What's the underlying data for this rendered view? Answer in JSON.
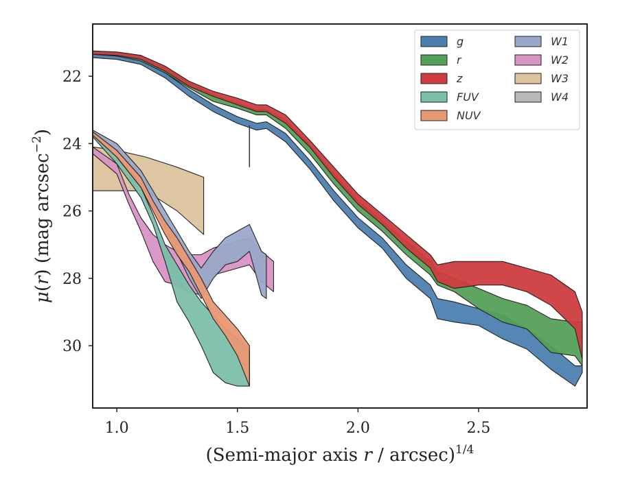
{
  "chart_data": {
    "type": "area",
    "xlabel": "(Semi-major axis r / arcsec)^{1/4}",
    "ylabel": "μ(r) (mag arcsec^{−2})",
    "xlim": [
      0.9,
      2.95
    ],
    "ylim": [
      31.85,
      20.45
    ],
    "y_inverted": true,
    "xticks": [
      1.0,
      1.5,
      2.0,
      2.5
    ],
    "xtick_labels": [
      "1.0",
      "1.5",
      "2.0",
      "2.5"
    ],
    "yticks": [
      22,
      24,
      26,
      28,
      30
    ],
    "ytick_labels": [
      "22",
      "24",
      "26",
      "28",
      "30"
    ],
    "legend": {
      "position": "top-right",
      "columns": 2
    },
    "annotation": {
      "type": "vertical-line",
      "x": 1.55,
      "y_range": [
        23.45,
        24.7
      ]
    },
    "series": [
      {
        "name": "g",
        "color": "#4c7fb0",
        "x": [
          0.9,
          1.0,
          1.1,
          1.2,
          1.3,
          1.4,
          1.5,
          1.58,
          1.62,
          1.7,
          1.8,
          1.9,
          2.0,
          2.1,
          2.2,
          2.3,
          2.33,
          2.4,
          2.5,
          2.6,
          2.7,
          2.8,
          2.9,
          2.93
        ],
        "y1": [
          21.35,
          21.4,
          21.5,
          21.9,
          22.4,
          22.85,
          23.2,
          23.4,
          23.35,
          23.7,
          24.5,
          25.4,
          26.2,
          26.8,
          27.6,
          28.2,
          28.6,
          28.7,
          28.9,
          29.1,
          29.5,
          30.0,
          30.6,
          30.6
        ],
        "y2": [
          21.45,
          21.5,
          21.65,
          22.05,
          22.6,
          23.05,
          23.4,
          23.6,
          23.55,
          23.95,
          24.75,
          25.7,
          26.5,
          27.1,
          28.0,
          28.6,
          29.2,
          29.3,
          29.4,
          29.8,
          30.1,
          30.7,
          31.2,
          30.8
        ]
      },
      {
        "name": "r",
        "color": "#55a05a",
        "x": [
          0.9,
          1.0,
          1.1,
          1.2,
          1.3,
          1.4,
          1.5,
          1.58,
          1.62,
          1.7,
          1.8,
          1.9,
          2.0,
          2.1,
          2.2,
          2.3,
          2.33,
          2.4,
          2.5,
          2.6,
          2.7,
          2.8,
          2.9,
          2.93
        ],
        "y1": [
          21.25,
          21.3,
          21.4,
          21.75,
          22.2,
          22.55,
          22.8,
          23.0,
          23.0,
          23.3,
          24.05,
          24.9,
          25.7,
          26.3,
          26.9,
          27.5,
          27.8,
          28.0,
          28.3,
          28.6,
          28.8,
          29.2,
          29.3,
          29.3
        ],
        "y2": [
          21.35,
          21.4,
          21.55,
          21.9,
          22.35,
          22.75,
          22.95,
          23.15,
          23.15,
          23.55,
          24.3,
          25.2,
          26.0,
          26.6,
          27.3,
          27.9,
          28.2,
          28.4,
          28.9,
          29.3,
          29.5,
          30.2,
          30.3,
          30.6
        ]
      },
      {
        "name": "z",
        "color": "#cf3c3f",
        "x": [
          0.9,
          1.0,
          1.1,
          1.2,
          1.3,
          1.4,
          1.5,
          1.58,
          1.62,
          1.7,
          1.8,
          1.9,
          2.0,
          2.1,
          2.2,
          2.3,
          2.33,
          2.4,
          2.5,
          2.6,
          2.7,
          2.8,
          2.9,
          2.93
        ],
        "y1": [
          21.25,
          21.28,
          21.38,
          21.7,
          22.15,
          22.45,
          22.65,
          22.85,
          22.85,
          23.15,
          23.9,
          24.7,
          25.5,
          26.1,
          26.7,
          27.3,
          27.6,
          27.5,
          27.5,
          27.5,
          27.7,
          27.9,
          28.4,
          29.0
        ],
        "y2": [
          21.35,
          21.38,
          21.5,
          21.85,
          22.3,
          22.6,
          22.85,
          23.05,
          23.05,
          23.4,
          24.1,
          25.0,
          25.8,
          26.4,
          27.1,
          27.7,
          28.1,
          28.3,
          28.2,
          28.2,
          28.4,
          28.8,
          29.5,
          30.4
        ]
      },
      {
        "name": "FUV",
        "color": "#7cbfaa",
        "x": [
          0.9,
          1.0,
          1.1,
          1.15,
          1.2,
          1.25,
          1.3,
          1.35,
          1.4,
          1.45,
          1.5,
          1.55
        ],
        "y1": [
          23.7,
          24.4,
          25.3,
          26.1,
          27.0,
          27.6,
          28.2,
          28.7,
          29.1,
          29.5,
          29.8,
          30.1
        ],
        "y2": [
          23.8,
          24.6,
          25.6,
          26.4,
          27.5,
          28.7,
          29.3,
          30.0,
          30.8,
          31.1,
          31.2,
          31.2
        ]
      },
      {
        "name": "NUV",
        "color": "#e99874",
        "x": [
          0.9,
          1.0,
          1.1,
          1.15,
          1.2,
          1.25,
          1.3,
          1.35,
          1.4,
          1.45,
          1.5,
          1.55
        ],
        "y1": [
          23.65,
          24.2,
          25.0,
          25.7,
          26.3,
          26.8,
          27.4,
          28.0,
          28.7,
          29.1,
          29.5,
          30.0
        ],
        "y2": [
          23.75,
          24.4,
          25.3,
          26.0,
          26.7,
          27.3,
          27.8,
          28.5,
          29.2,
          29.7,
          30.3,
          31.2
        ]
      },
      {
        "name": "W1",
        "color": "#9aa8c8",
        "x": [
          0.9,
          1.0,
          1.1,
          1.2,
          1.3,
          1.35,
          1.4,
          1.45,
          1.5,
          1.55,
          1.6,
          1.62
        ],
        "y1": [
          23.6,
          24.0,
          24.8,
          26.0,
          27.2,
          27.7,
          27.2,
          26.8,
          26.6,
          26.4,
          27.2,
          27.3
        ],
        "y2": [
          23.8,
          24.4,
          25.2,
          26.5,
          28.0,
          28.6,
          28.0,
          27.6,
          27.5,
          27.2,
          28.5,
          28.6
        ]
      },
      {
        "name": "W2",
        "color": "#d993c4",
        "x": [
          0.9,
          1.0,
          1.05,
          1.1,
          1.15,
          1.2,
          1.25,
          1.3,
          1.35,
          1.4,
          1.45,
          1.5,
          1.55,
          1.6,
          1.65
        ],
        "y1": [
          24.1,
          24.6,
          25.5,
          26.2,
          26.7,
          27.0,
          27.2,
          27.3,
          27.3,
          27.1,
          27.0,
          26.9,
          26.8,
          27.2,
          27.5
        ],
        "y2": [
          24.3,
          24.9,
          25.8,
          26.6,
          27.5,
          28.1,
          28.2,
          28.4,
          28.5,
          27.9,
          27.8,
          27.7,
          27.6,
          28.1,
          28.4
        ]
      },
      {
        "name": "W3",
        "color": "#dcc39e",
        "x": [
          0.9,
          1.0,
          1.12,
          1.25,
          1.36
        ],
        "y1": [
          24.1,
          24.2,
          24.4,
          24.7,
          25.0
        ],
        "y2": [
          25.4,
          25.4,
          25.4,
          26.0,
          26.7
        ]
      },
      {
        "name": "W4",
        "color": "#b8b8b8",
        "x": [],
        "y1": [],
        "y2": []
      }
    ]
  }
}
